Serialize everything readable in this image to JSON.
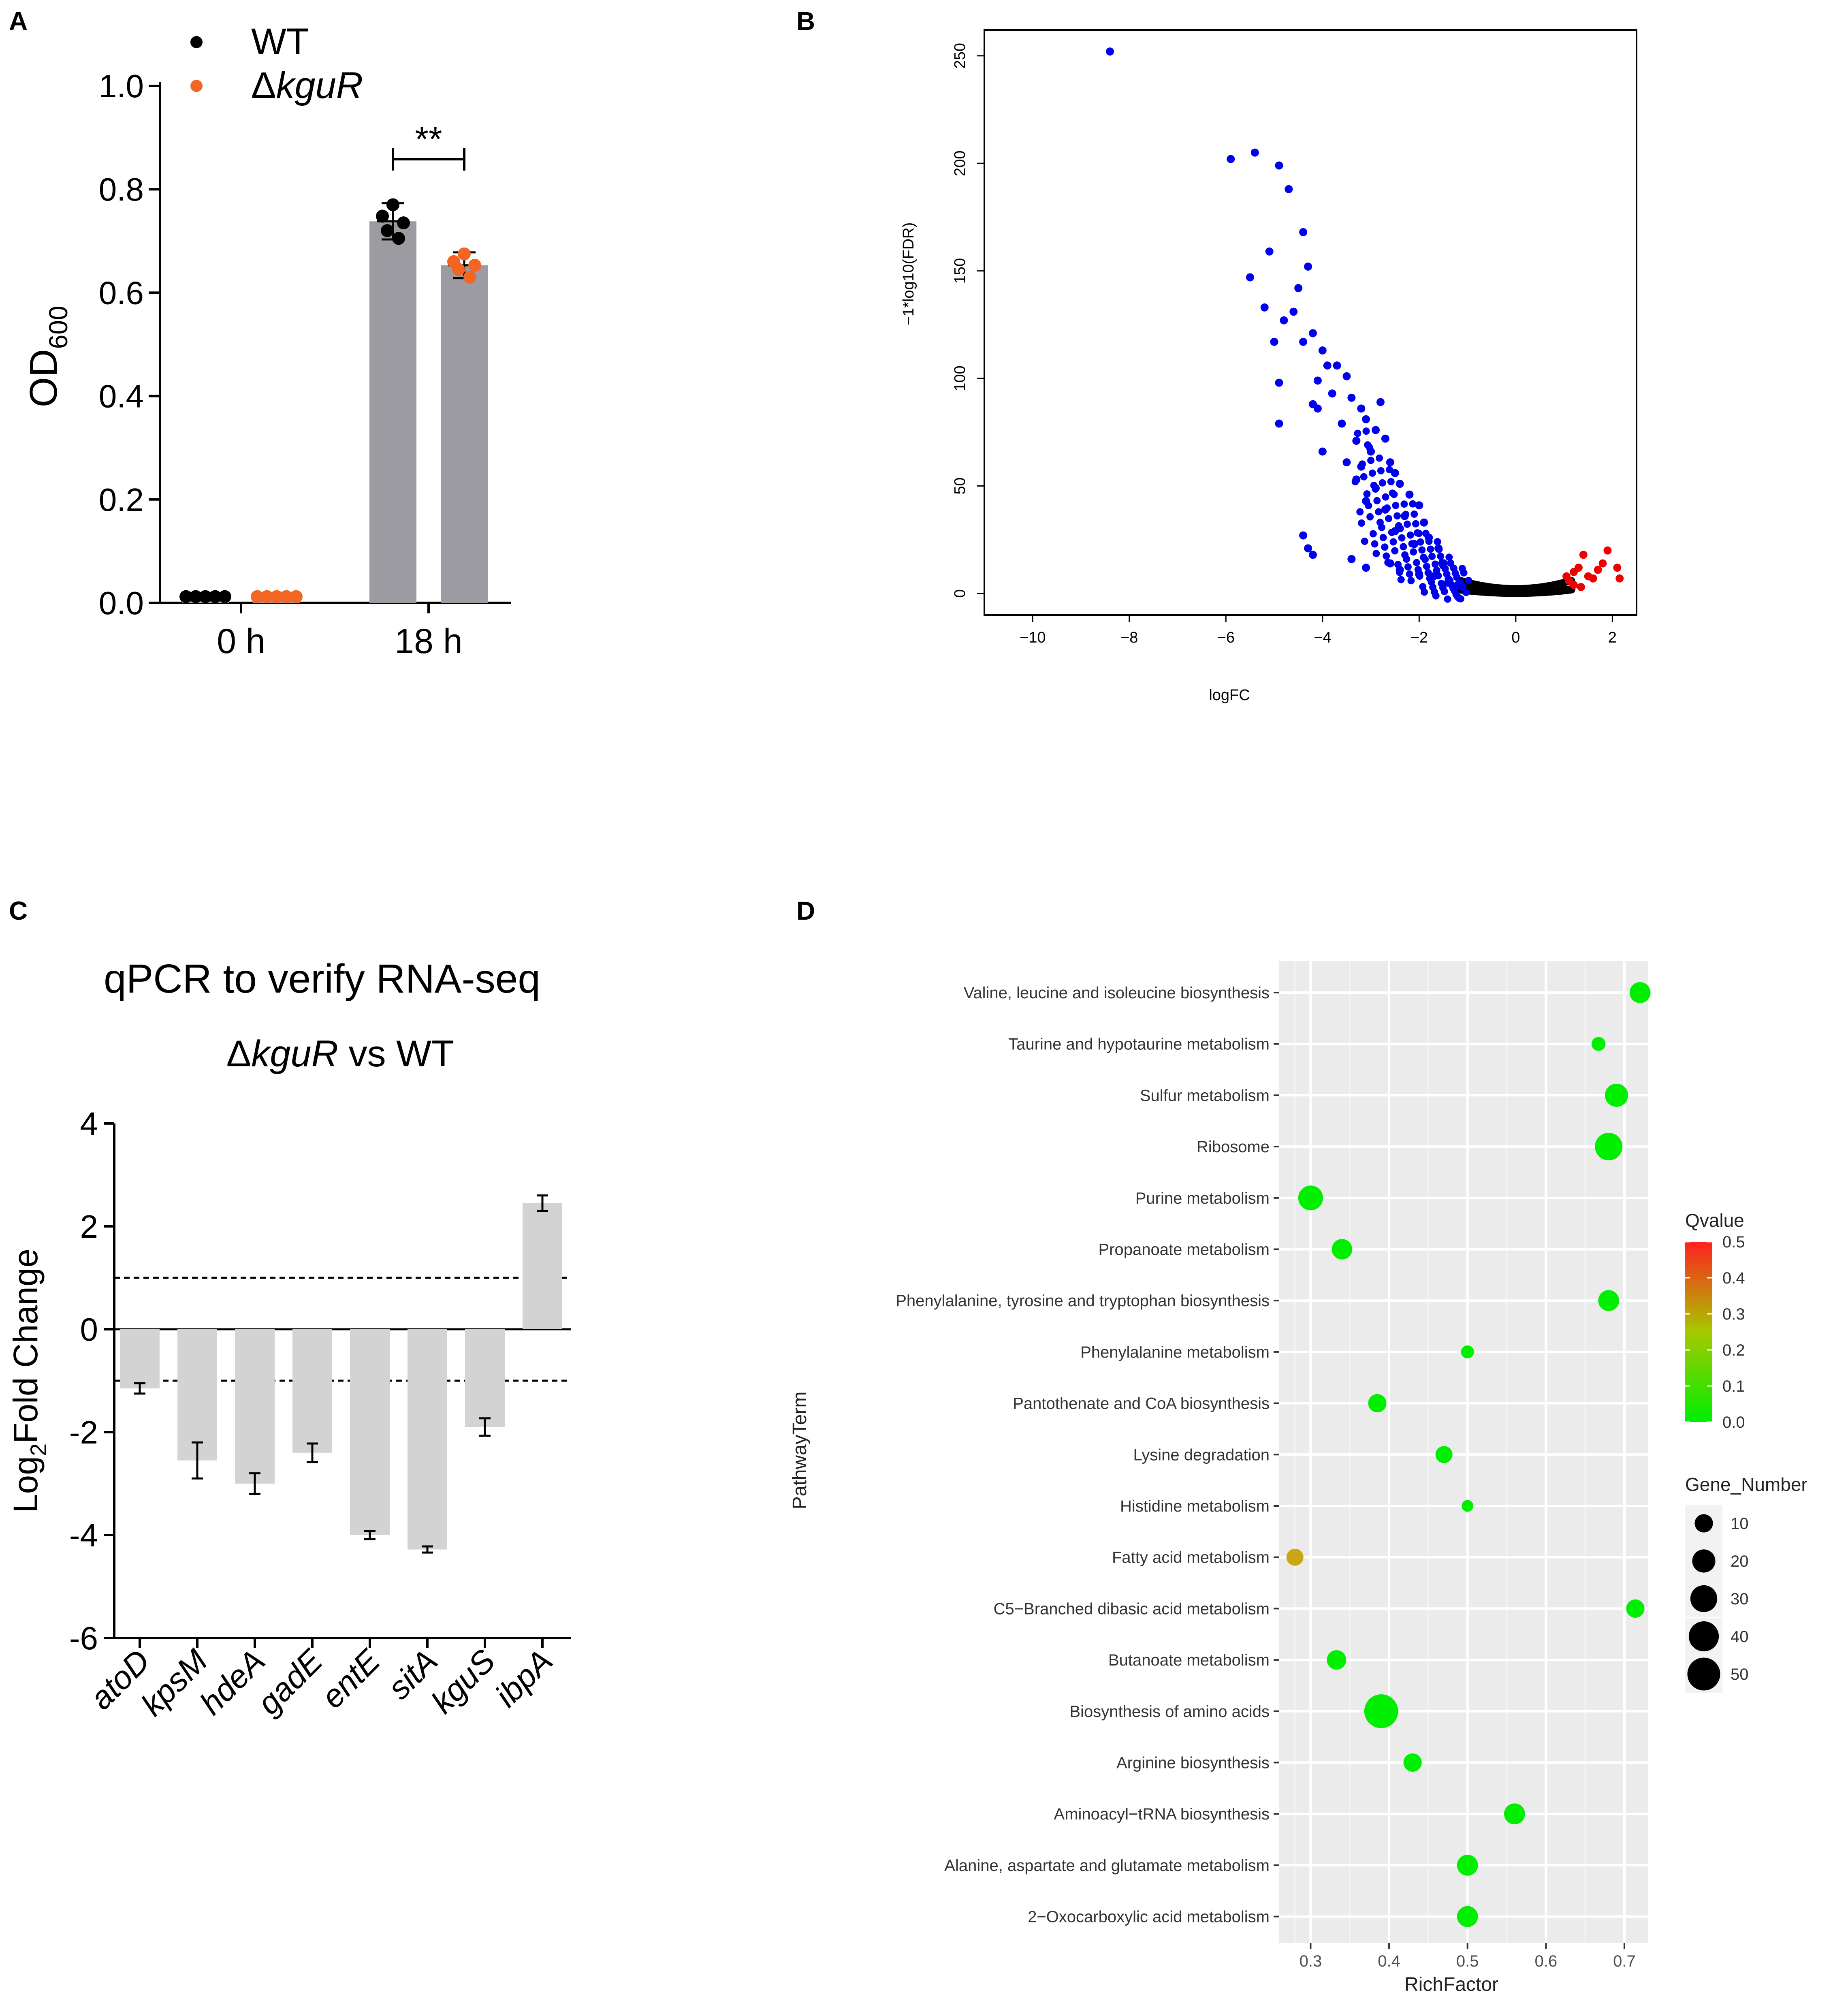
{
  "panels": {
    "A": {
      "letter": "A",
      "chart_data": {
        "type": "bar",
        "categories": [
          "0 h",
          "18 h"
        ],
        "ylabel_main": "OD",
        "ylabel_sub": "600",
        "ylim": [
          0,
          1.0
        ],
        "yticks": [
          "0.0",
          "0.2",
          "0.4",
          "0.6",
          "0.8",
          "1.0"
        ],
        "series": [
          {
            "name": "WT",
            "color": "#000000",
            "means": [
              0.012,
              0.738
            ],
            "sd": [
              0.0,
              0.035
            ],
            "points": [
              [
                0.012,
                0.012,
                0.012,
                0.012,
                0.012
              ],
              [
                0.77,
                0.748,
                0.735,
                0.72,
                0.705
              ]
            ]
          },
          {
            "name": "ΔkguR",
            "color": "#f26522",
            "means": [
              0.012,
              0.653
            ],
            "sd": [
              0.0,
              0.025
            ],
            "points": [
              [
                0.012,
                0.012,
                0.012,
                0.012,
                0.012
              ],
              [
                0.675,
                0.66,
                0.653,
                0.645,
                0.63
              ]
            ]
          }
        ],
        "legend": {
          "wt": "WT",
          "ko_prefix": "Δ",
          "ko_italic": "kguR"
        },
        "significance": "**"
      }
    },
    "B": {
      "letter": "B",
      "chart_data": {
        "type": "scatter",
        "xlabel": "logFC",
        "ylabel": "−1*log10(FDR)",
        "xlim": [
          -11,
          2.5
        ],
        "ylim": [
          -10,
          262
        ],
        "xticks": [
          "−10",
          "−8",
          "−6",
          "−4",
          "−2",
          "0",
          "2"
        ],
        "yticks": [
          "0",
          "50",
          "100",
          "150",
          "200",
          "250"
        ],
        "colors": {
          "down": "#0000ee",
          "up": "#ee0000",
          "ns": "#000000"
        },
        "down_points": [
          [
            -8.4,
            252
          ],
          [
            -5.9,
            202
          ],
          [
            -5.4,
            205
          ],
          [
            -4.9,
            199
          ],
          [
            -4.7,
            188
          ],
          [
            -5.1,
            159
          ],
          [
            -4.4,
            168
          ],
          [
            -5.5,
            147
          ],
          [
            -4.3,
            152
          ],
          [
            -4.5,
            142
          ],
          [
            -5.2,
            133
          ],
          [
            -4.6,
            131
          ],
          [
            -4.8,
            127
          ],
          [
            -4.2,
            121
          ],
          [
            -4.0,
            113
          ],
          [
            -4.4,
            117
          ],
          [
            -5.0,
            117
          ],
          [
            -3.9,
            106
          ],
          [
            -3.7,
            106
          ],
          [
            -4.1,
            99
          ],
          [
            -3.5,
            101
          ],
          [
            -4.9,
            98
          ],
          [
            -3.4,
            91
          ],
          [
            -3.8,
            93
          ],
          [
            -4.2,
            88
          ],
          [
            -3.2,
            86
          ],
          [
            -2.8,
            89
          ],
          [
            -4.1,
            86
          ],
          [
            -3.1,
            81
          ],
          [
            -4.9,
            79
          ],
          [
            -3.6,
            79
          ],
          [
            -2.9,
            76
          ],
          [
            -3.3,
            71
          ],
          [
            -2.7,
            72
          ],
          [
            -3.0,
            66
          ],
          [
            -4.0,
            66
          ],
          [
            -3.5,
            61
          ],
          [
            -2.6,
            61
          ],
          [
            -3.2,
            59
          ],
          [
            -2.5,
            56
          ],
          [
            -3.3,
            53
          ],
          [
            -2.4,
            51
          ],
          [
            -2.9,
            49
          ],
          [
            -2.2,
            46
          ],
          [
            -3.1,
            43
          ],
          [
            -2.0,
            41
          ],
          [
            -2.7,
            39
          ],
          [
            -2.3,
            36
          ],
          [
            -1.9,
            33
          ],
          [
            -4.4,
            27
          ],
          [
            -2.5,
            29
          ],
          [
            -1.8,
            26
          ],
          [
            -2.1,
            23
          ],
          [
            -1.6,
            21
          ],
          [
            -4.3,
            21
          ],
          [
            -4.2,
            18
          ],
          [
            -3.4,
            16
          ],
          [
            -2.6,
            14
          ],
          [
            -2.4,
            11
          ],
          [
            -3.1,
            12
          ],
          [
            -1.5,
            13
          ],
          [
            -2.0,
            9
          ],
          [
            -1.7,
            8
          ],
          [
            -1.4,
            5
          ],
          [
            -1.2,
            4
          ],
          [
            -1.1,
            3
          ]
        ],
        "up_points": [
          [
            2.1,
            12
          ],
          [
            1.9,
            20
          ],
          [
            1.8,
            14
          ],
          [
            1.7,
            11
          ],
          [
            1.5,
            8
          ],
          [
            1.4,
            18
          ],
          [
            1.3,
            12
          ],
          [
            1.6,
            7
          ],
          [
            1.2,
            10
          ],
          [
            1.1,
            6
          ],
          [
            1.2,
            4
          ],
          [
            1.35,
            3
          ],
          [
            1.05,
            8
          ],
          [
            2.15,
            7
          ]
        ]
      }
    },
    "C": {
      "letter": "C",
      "chart_data": {
        "type": "bar",
        "title": "qPCR to verify RNA-seq",
        "subtitle_prefix": "Δ",
        "subtitle_italic": "kguR",
        "subtitle_suffix": " vs WT",
        "ylabel_main": "Log",
        "ylabel_sub": "2",
        "ylabel_end": "Fold Change",
        "ylim": [
          -6,
          4
        ],
        "yticks": [
          "-6",
          "-4",
          "-2",
          "0",
          "2",
          "4"
        ],
        "thresholds": [
          1,
          -1
        ],
        "categories": [
          "atoD",
          "kpsM",
          "hdeA",
          "gadE",
          "entE",
          "sitA",
          "kguS",
          "ibpA"
        ],
        "values": [
          -1.15,
          -2.55,
          -3.0,
          -2.4,
          -4.0,
          -4.28,
          -1.9,
          2.45
        ],
        "errors": [
          0.1,
          0.35,
          0.2,
          0.18,
          0.08,
          0.06,
          0.17,
          0.15
        ]
      }
    },
    "D": {
      "letter": "D",
      "chart_data": {
        "type": "scatter",
        "xlabel": "RichFactor",
        "ylabel": "PathwayTerm",
        "xlim": [
          0.26,
          0.73
        ],
        "xticks": [
          "0.3",
          "0.4",
          "0.5",
          "0.6",
          "0.7"
        ],
        "terms": [
          "Valine, leucine and isoleucine biosynthesis",
          "Taurine and hypotaurine metabolism",
          "Sulfur metabolism",
          "Ribosome",
          "Purine metabolism",
          "Propanoate metabolism",
          "Phenylalanine, tyrosine and tryptophan biosynthesis",
          "Phenylalanine metabolism",
          "Pantothenate and CoA biosynthesis",
          "Lysine degradation",
          "Histidine metabolism",
          "Fatty acid metabolism",
          "C5−Branched dibasic acid metabolism",
          "Butanoate metabolism",
          "Biosynthesis of amino acids",
          "Arginine biosynthesis",
          "Aminoacyl−tRNA biosynthesis",
          "Alanine, aspartate and glutamate metabolism",
          "2−Oxocarboxylic acid metabolism"
        ],
        "rich_factor": [
          0.72,
          0.667,
          0.69,
          0.68,
          0.3,
          0.34,
          0.68,
          0.5,
          0.385,
          0.47,
          0.5,
          0.28,
          0.714,
          0.333,
          0.39,
          0.43,
          0.56,
          0.5,
          0.5
        ],
        "gene_number": [
          15,
          4,
          20,
          32,
          24,
          14,
          15,
          3,
          10,
          8,
          2,
          8,
          10,
          12,
          54,
          10,
          15,
          15,
          15
        ],
        "qvalue": [
          0.0,
          0.0,
          0.0,
          0.0,
          0.0,
          0.0,
          0.0,
          0.0,
          0.0,
          0.0,
          0.0,
          0.25,
          0.0,
          0.0,
          0.0,
          0.0,
          0.0,
          0.0,
          0.0
        ],
        "qvalue_legend": {
          "title": "Qvalue",
          "ticks": [
            "0.5",
            "0.4",
            "0.3",
            "0.2",
            "0.1",
            "0.0"
          ],
          "colors": [
            "#ff2020",
            "#00ee00"
          ]
        },
        "size_legend": {
          "title": "Gene_Number",
          "values": [
            10,
            20,
            30,
            40,
            50
          ],
          "labels": [
            "10",
            "20",
            "30",
            "40",
            "50"
          ]
        }
      }
    }
  }
}
